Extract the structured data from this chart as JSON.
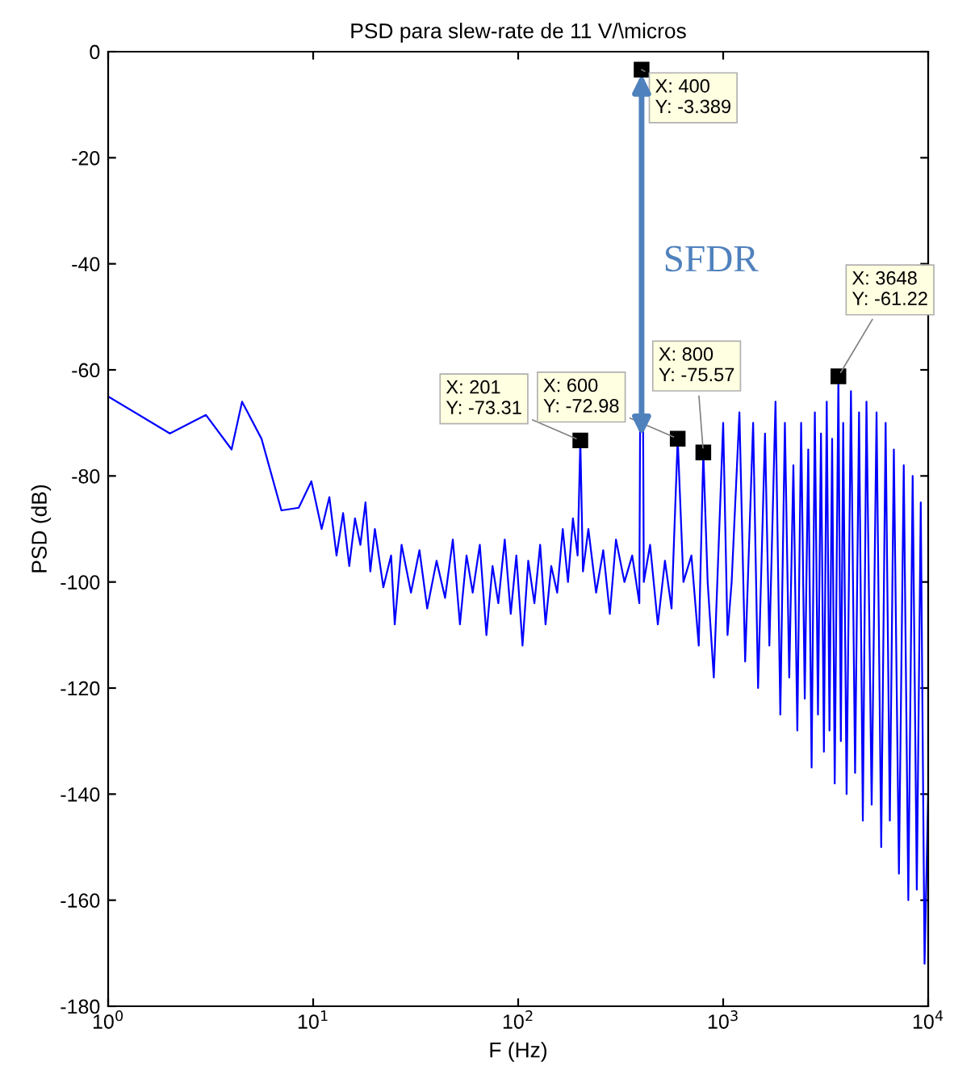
{
  "chart_data": {
    "type": "line",
    "title": "PSD para slew-rate de 11 V/\\micros",
    "xlabel": "F (Hz)",
    "ylabel": "PSD (dB)",
    "log": "x",
    "xlim": [
      1,
      10000
    ],
    "xticks": [
      {
        "value": 1,
        "label": "10$^{0}$"
      },
      {
        "value": 10,
        "label": "10$^{1}$"
      },
      {
        "value": 100,
        "label": "10$^{2}$"
      },
      {
        "value": 1000,
        "label": "10$^{3}$"
      },
      {
        "value": 10000,
        "label": "10$^{4}$"
      }
    ],
    "ylim": [
      -180,
      0
    ],
    "yticks": [
      -180,
      -160,
      -140,
      -120,
      -100,
      -80,
      -60,
      -40,
      -20,
      0
    ],
    "grid": false,
    "series": [
      {
        "color": "#0000ff",
        "x": [
          1,
          2,
          3,
          4,
          4.5,
          5.6,
          7,
          8.5,
          9.8,
          11,
          12,
          13,
          14,
          15,
          16,
          17,
          18,
          19,
          20,
          22,
          24,
          25,
          27,
          30,
          33,
          36,
          40,
          44,
          48,
          52,
          56,
          60,
          65,
          70,
          75,
          80,
          86,
          92,
          98,
          105,
          112,
          120,
          128,
          136,
          145,
          155,
          165,
          175,
          185,
          195,
          201,
          207,
          220,
          240,
          260,
          280,
          300,
          330,
          360,
          390,
          400,
          410,
          440,
          480,
          520,
          560,
          600,
          640,
          700,
          760,
          800,
          840,
          900,
          1000,
          1050,
          1100,
          1200,
          1280,
          1400,
          1480,
          1600,
          1680,
          1800,
          1900,
          2000,
          2100,
          2200,
          2300,
          2400,
          2500,
          2600,
          2700,
          2800,
          2900,
          3000,
          3100,
          3200,
          3300,
          3400,
          3500,
          3648,
          3750,
          3850,
          4000,
          4200,
          4400,
          4600,
          4800,
          5000,
          5300,
          5600,
          5900,
          6200,
          6500,
          6800,
          7200,
          7600,
          8000,
          8400,
          8800,
          9200,
          9600,
          10000
        ],
        "values": [
          -65,
          -72,
          -68.5,
          -75,
          -66,
          -73,
          -86.5,
          -86,
          -81,
          -90,
          -84,
          -95,
          -87,
          -97,
          -88,
          -93,
          -85,
          -98,
          -90,
          -101,
          -95,
          -108,
          -93,
          -102,
          -94,
          -105,
          -96,
          -103,
          -92,
          -108,
          -95,
          -102,
          -93,
          -110,
          -97,
          -104,
          -92,
          -106,
          -95,
          -112,
          -96,
          -104,
          -93,
          -108,
          -97,
          -102,
          -90,
          -100,
          -88,
          -95,
          -73.31,
          -98,
          -90,
          -102,
          -94,
          -106,
          -92,
          -100,
          -95,
          -104,
          -3.389,
          -100,
          -93,
          -108,
          -96,
          -105,
          -72.98,
          -100,
          -95,
          -112,
          -75.57,
          -100,
          -118,
          -70,
          -110,
          -100,
          -68,
          -115,
          -70,
          -120,
          -72,
          -112,
          -66,
          -125,
          -70,
          -118,
          -78,
          -128,
          -70,
          -122,
          -75,
          -135,
          -68,
          -125,
          -72,
          -132,
          -66,
          -128,
          -73,
          -138,
          -61.22,
          -130,
          -70,
          -140,
          -64,
          -136,
          -68,
          -145,
          -66,
          -142,
          -68,
          -150,
          -70,
          -145,
          -75,
          -155,
          -78,
          -160,
          -80,
          -158,
          -85,
          -172,
          -140
        ]
      }
    ],
    "annotations": [
      {
        "text": "X: 201\nY: -73.31",
        "x": 201,
        "y": -73.31
      },
      {
        "text": "X: 400\nY: -3.389",
        "x": 400,
        "y": -3.389
      },
      {
        "text": "X: 600\nY: -72.98",
        "x": 600,
        "y": -72.98
      },
      {
        "text": "X: 800\nY: -75.57",
        "x": 800,
        "y": -75.57
      },
      {
        "text": "X: 3648\nY: -61.22",
        "x": 3648,
        "y": -61.22
      },
      "SFDR"
    ]
  }
}
